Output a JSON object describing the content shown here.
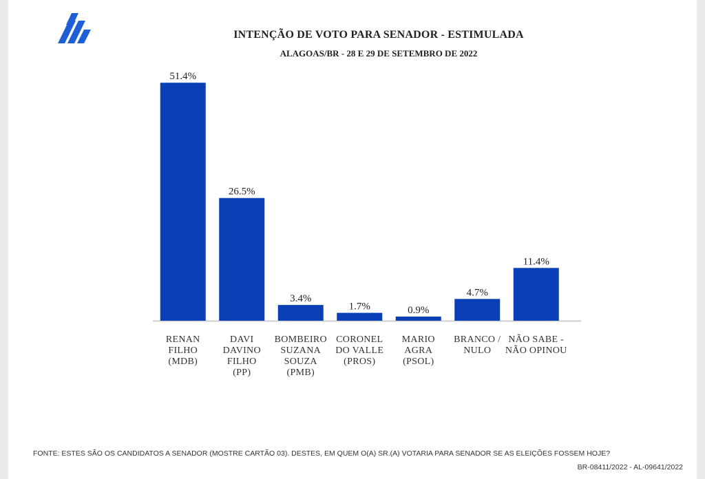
{
  "chart_data": {
    "type": "bar",
    "title": "INTENÇÃO DE VOTO PARA SENADOR - ESTIMULADA",
    "subtitle": "ALAGOAS/BR - 28 E 29 DE SETEMBRO DE 2022",
    "categories": [
      "RENAN\nFILHO\n(MDB)",
      "DAVI\nDAVINO\nFILHO\n(PP)",
      "BOMBEIRO\nSUZANA\nSOUZA\n(PMB)",
      "CORONEL\nDO VALLE\n(PROS)",
      "MARIO\nAGRA\n(PSOL)",
      "BRANCO /\nNULO",
      "NÃO SABE  -\nNÃO OPINOU"
    ],
    "values": [
      51.4,
      26.5,
      3.4,
      1.7,
      0.9,
      4.7,
      11.4
    ],
    "value_labels": [
      "51.4%",
      "26.5%",
      "3.4%",
      "1.7%",
      "0.9%",
      "4.7%",
      "11.4%"
    ],
    "xlabel": "",
    "ylabel": "",
    "ylim": [
      0,
      55
    ],
    "grid": false,
    "bar_color": "#0b3fb5"
  },
  "footnote": "FONTE: ESTES SÃO OS CANDIDATOS A SENADOR (MOSTRE CARTÃO 03). DESTES, EM QUEM O(A) SR.(A) VOTARIA PARA SENADOR SE AS ELEIÇÕES FOSSEM HOJE?",
  "registration": "BR-08411/2022 - AL-09641/2022",
  "colors": {
    "brand": "#1f5fd6",
    "axis": "#cfcfcf"
  },
  "logo": {
    "icon": "stacked-stripes-logo-icon"
  }
}
